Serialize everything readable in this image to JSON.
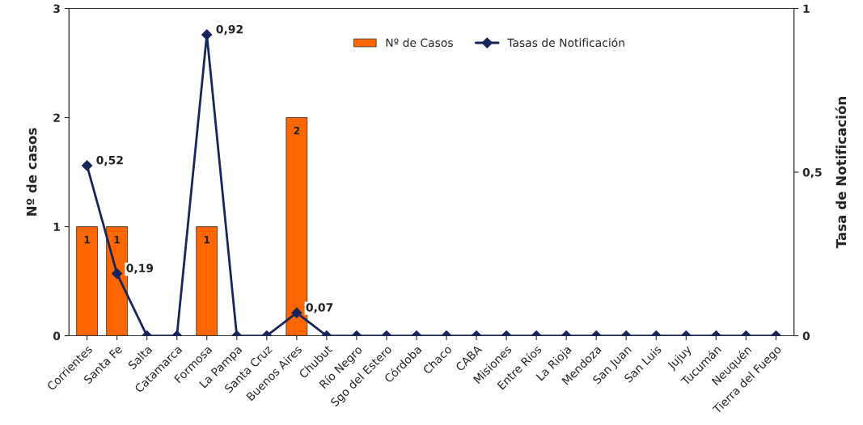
{
  "chart_data": {
    "type": "bar",
    "categories": [
      "Corrientes",
      "Santa Fe",
      "Salta",
      "Catamarca",
      "Formosa",
      "La Pampa",
      "Santa Cruz",
      "Buenos Aires",
      "Chubut",
      "Río Negro",
      "Sgo del Estero",
      "Córdoba",
      "Chaco",
      "CABA",
      "Misiones",
      "Entre Ríos",
      "La Rioja",
      "Mendoza",
      "San Juan",
      "San Luis",
      "Jujuy",
      "Tucumán",
      "Neuquén",
      "Tierra del Fuego"
    ],
    "series": [
      {
        "name": "Nº de Casos",
        "color": "#ff6600",
        "values": [
          1,
          1,
          0,
          0,
          1,
          0,
          0,
          2,
          0,
          0,
          0,
          0,
          0,
          0,
          0,
          0,
          0,
          0,
          0,
          0,
          0,
          0,
          0,
          0
        ],
        "value_labels": [
          "1",
          "1",
          null,
          null,
          "1",
          null,
          null,
          "2",
          null,
          null,
          null,
          null,
          null,
          null,
          null,
          null,
          null,
          null,
          null,
          null,
          null,
          null,
          null,
          null
        ]
      },
      {
        "name": "Tasas de Notificación",
        "type": "line",
        "axis": "y2",
        "color": "#17255a",
        "values": [
          0.52,
          0.19,
          0,
          0,
          0.92,
          0,
          0,
          0.07,
          0,
          0,
          0,
          0,
          0,
          0,
          0,
          0,
          0,
          0,
          0,
          0,
          0,
          0,
          0,
          0
        ],
        "value_labels": [
          "0,52",
          "0,19",
          null,
          null,
          "0,92",
          null,
          null,
          "0,07",
          null,
          null,
          null,
          null,
          null,
          null,
          null,
          null,
          null,
          null,
          null,
          null,
          null,
          null,
          null,
          null
        ]
      }
    ],
    "ylabel": "Nº de casos",
    "y2label": "Tasa de Notificación",
    "ylim": [
      0,
      3
    ],
    "yticks": [
      0,
      1,
      2,
      3
    ],
    "y2lim": [
      0,
      1
    ],
    "y2ticks": [
      0,
      {
        "value": 0.5,
        "label": "0,5"
      },
      1
    ],
    "marker": "diamond",
    "grid": false,
    "legend": "top"
  }
}
